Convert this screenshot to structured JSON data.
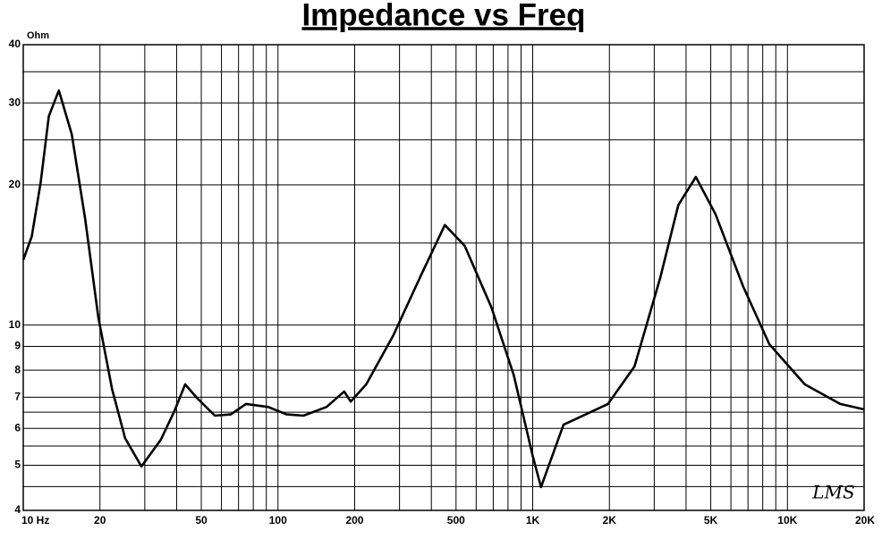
{
  "chart_data": {
    "type": "line",
    "title": "Impedance vs Freq",
    "y_unit": "Ohm",
    "logo": "LMS",
    "x": [
      10,
      10.8,
      11.7,
      12.6,
      13.8,
      15.5,
      17.5,
      19.7,
      22.3,
      25.1,
      29.1,
      34.7,
      39.2,
      43.2,
      48,
      56.5,
      65.3,
      74.9,
      91.6,
      108,
      126,
      155,
      182,
      193,
      222,
      284,
      362,
      452,
      541,
      689,
      843,
      1000,
      1078,
      1322,
      1975,
      2510,
      3175,
      3730,
      4370,
      5220,
      6700,
      8490,
      11700,
      16100,
      20000
    ],
    "series": [
      {
        "color": "#000000",
        "values": [
          13.8,
          15.5,
          20.2,
          28.1,
          31.9,
          25.7,
          16.9,
          10.4,
          7.3,
          5.72,
          4.97,
          5.68,
          6.53,
          7.46,
          6.98,
          6.39,
          6.43,
          6.77,
          6.67,
          6.43,
          6.39,
          6.67,
          7.2,
          6.85,
          7.46,
          9.51,
          12.7,
          16.4,
          14.8,
          10.9,
          7.8,
          5.24,
          4.49,
          6.11,
          6.77,
          8.15,
          12.7,
          18.1,
          20.8,
          17.3,
          12.1,
          9.1,
          7.46,
          6.77,
          6.59
        ]
      }
    ],
    "log_x": true,
    "log_y": true,
    "grid": true,
    "xlim": [
      10,
      20000
    ],
    "xticks": [
      {
        "value": 10,
        "label": "10 Hz"
      },
      20,
      50,
      100,
      200,
      500,
      {
        "value": 1000,
        "label": "1K"
      },
      {
        "value": 2000,
        "label": "2K"
      },
      {
        "value": 5000,
        "label": "5K"
      },
      {
        "value": 10000,
        "label": "10K"
      },
      {
        "value": 20000,
        "label": "20K"
      }
    ],
    "xminor": [
      30,
      40,
      60,
      70,
      80,
      90,
      300,
      400,
      600,
      700,
      800,
      900,
      3000,
      4000,
      6000,
      7000,
      8000,
      9000
    ],
    "ylim": [
      4,
      40
    ],
    "yticks": [
      4,
      5,
      6,
      7,
      8,
      9,
      10,
      20,
      30,
      40
    ],
    "yminor": [
      4.5,
      5.5,
      6.5,
      15,
      25,
      35
    ]
  }
}
